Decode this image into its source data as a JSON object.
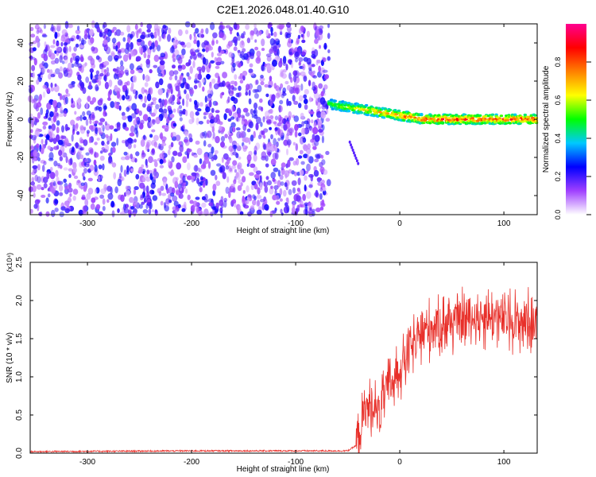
{
  "figure": {
    "title": "C2E1.2026.048.01.40.G10"
  },
  "chart_data": [
    {
      "type": "heatmap",
      "xlabel": "Height of straight line (km)",
      "ylabel": "Frequency (Hz)",
      "xlim": [
        -355,
        132
      ],
      "ylim": [
        -50,
        50
      ],
      "xticks": [
        -300,
        -200,
        -100,
        0,
        100
      ],
      "yticks": [
        -40,
        -20,
        0,
        20,
        40
      ],
      "colorbar": {
        "label": "Normalized spectral amplitude",
        "range": [
          0,
          1
        ],
        "ticks": [
          "0.0",
          "0.2",
          "0.4",
          "0.6",
          "0.8"
        ],
        "colors": [
          "#ffffff",
          "#a040ff",
          "#0000ff",
          "#00c8ff",
          "#00ff00",
          "#ffff00",
          "#ff8000",
          "#ff0000",
          "#ff0090"
        ]
      },
      "regions": [
        {
          "x_range": [
            -355,
            -68
          ],
          "y_range": [
            -50,
            50
          ],
          "description": "broadband noise",
          "amplitude": [
            0.05,
            0.25
          ]
        },
        {
          "x_range": [
            -68,
            132
          ],
          "center_freq_hz": [
            8,
            0
          ],
          "description": "narrow signal line",
          "amplitude": [
            0.3,
            0.95
          ]
        }
      ]
    },
    {
      "type": "line",
      "xlabel": "Height of straight line (km)",
      "ylabel": "SNR (10 * v/v)",
      "y_multiplier": "(x10⁴)",
      "xlim": [
        -355,
        132
      ],
      "ylim": [
        0,
        2.5
      ],
      "xticks": [
        -300,
        -200,
        -100,
        0,
        100
      ],
      "yticks": [
        "0.0",
        "0.5",
        "1.0",
        "1.5",
        "2.0",
        "2.5"
      ],
      "series": [
        {
          "color": "#e8302a",
          "x": [
            -355,
            -200,
            -100,
            -50,
            -42,
            -35,
            -30,
            -25,
            -20,
            -15,
            -10,
            -5,
            0,
            10,
            20,
            30,
            40,
            60,
            80,
            100,
            120,
            132
          ],
          "y": [
            0.02,
            0.03,
            0.03,
            0.03,
            0.1,
            0.5,
            0.6,
            0.65,
            0.5,
            0.75,
            0.9,
            1.0,
            1.1,
            1.35,
            1.55,
            1.65,
            1.7,
            1.75,
            1.8,
            1.75,
            1.72,
            1.7
          ]
        }
      ]
    }
  ]
}
